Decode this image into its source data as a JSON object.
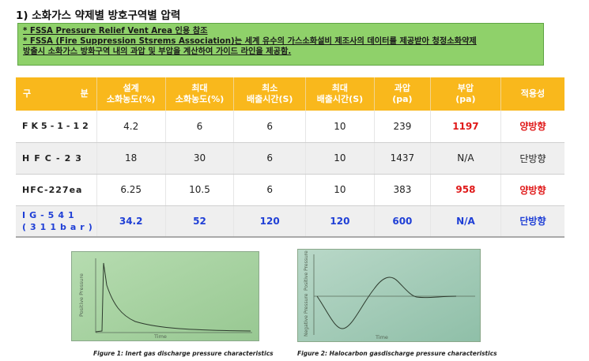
{
  "page": {
    "title": "1) 소화가스 약제별 방호구역별 압력",
    "notice_lines": [
      "* FSSA Pressure Relief Vent Area 인용 참조",
      "* FSSA (Fire Suppression Stsrems Association)는 세계 유수의 가스소화설비 제조사의 데이터를 제공받아 청정소화약제",
      "방출시 소화가스 방화구역 내의 과압 및 부압을 계산하여 가이드 라인을 제공함."
    ]
  },
  "table": {
    "headers": [
      {
        "l1": "구",
        "l2": "분"
      },
      {
        "l1": "설계",
        "l2": "소화농도(%)"
      },
      {
        "l1": "최대",
        "l2": "소화농도(%)"
      },
      {
        "l1": "최소",
        "l2": "배출시간(S)"
      },
      {
        "l1": "최대",
        "l2": "배출시간(S)"
      },
      {
        "l1": "과압",
        "l2": "(pa)"
      },
      {
        "l1": "부압",
        "l2": "(pa)"
      },
      {
        "l1": "적용성",
        "l2": ""
      }
    ],
    "rows": [
      {
        "agent": "FK5-1-12",
        "agent2": "",
        "design": "4.2",
        "max_conc": "6",
        "min_time": "6",
        "max_time": "10",
        "over": "239",
        "under": "1197",
        "applicability": "양방향"
      },
      {
        "agent": "HFC-23",
        "agent2": "",
        "design": "18",
        "max_conc": "30",
        "min_time": "6",
        "max_time": "10",
        "over": "1437",
        "under": "N/A",
        "applicability": "단방향"
      },
      {
        "agent": "HFC-227ea",
        "agent2": "",
        "design": "6.25",
        "max_conc": "10.5",
        "min_time": "6",
        "max_time": "10",
        "over": "383",
        "under": "958",
        "applicability": "양방향"
      },
      {
        "agent": "IG-541",
        "agent2": "(311bar)",
        "design": "34.2",
        "max_conc": "52",
        "min_time": "120",
        "max_time": "120",
        "over": "600",
        "under": "N/A",
        "applicability": "단방향"
      }
    ]
  },
  "figures": [
    {
      "y_label": "Positive Pressure",
      "x_label": "Time",
      "caption": "Figure 1: Inert gas discharge pressure characteristics"
    },
    {
      "y_label_top": "Positive Pressure",
      "y_label_bottom": "Negative Pressure",
      "x_label": "Time",
      "caption": "Figure 2: Halocarbon gasdischarge pressure characteristics"
    }
  ],
  "colors": {
    "header_bg": "#f9b81c",
    "notice_bg": "#8fd16a",
    "highlight_red": "#e01919",
    "highlight_blue": "#1f3fd6",
    "figure_bg": "#a9d3a4"
  }
}
